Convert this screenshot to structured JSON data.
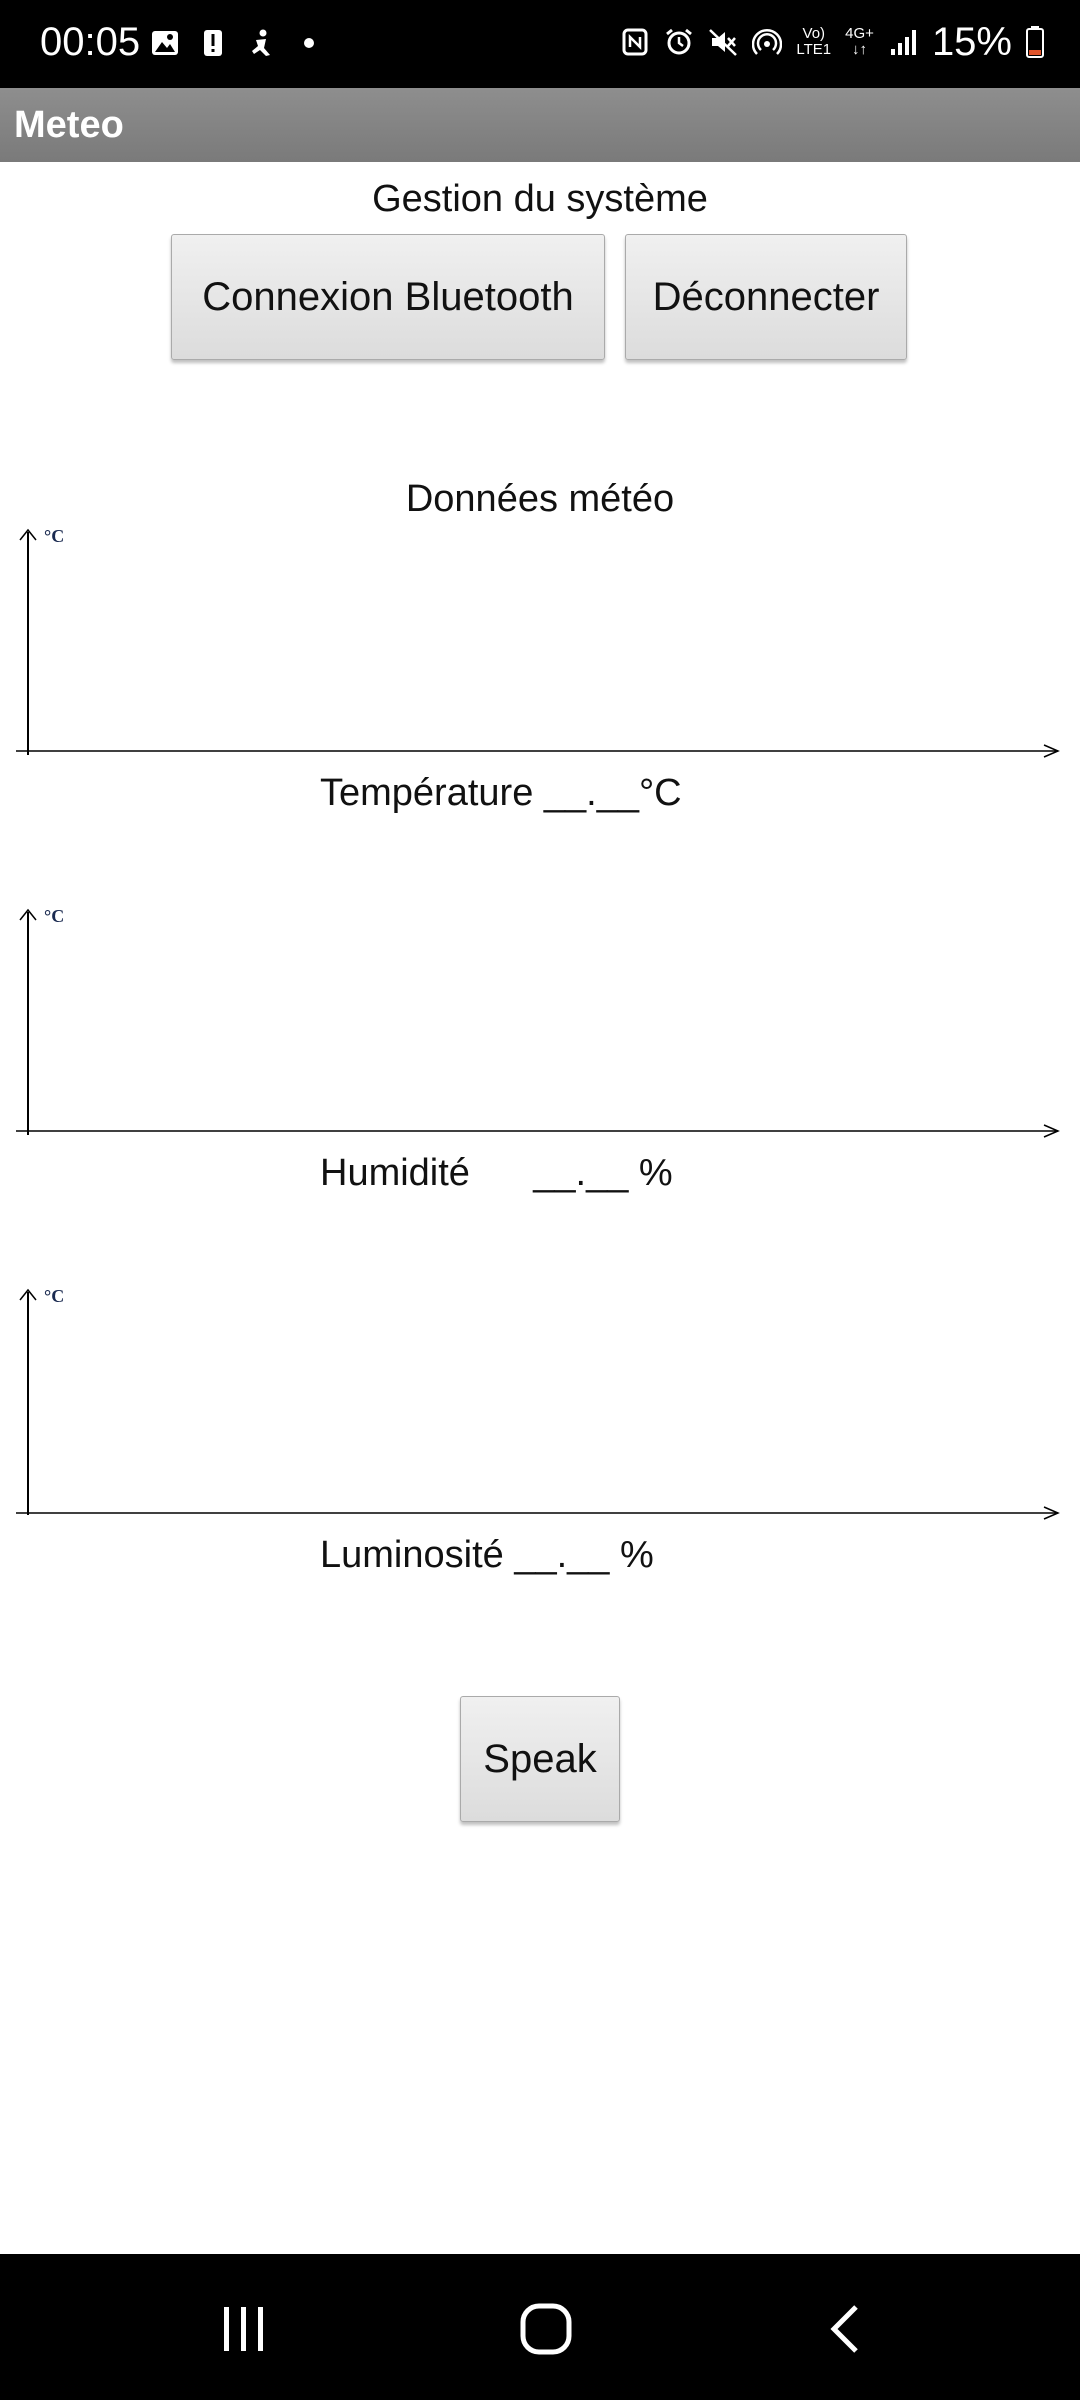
{
  "status_bar": {
    "time": "00:05",
    "battery_percent": "15%",
    "network_label_top": "Vo)",
    "network_label_bottom": "LTE1",
    "data_label": "4G+",
    "icons_left": [
      "image-icon",
      "alert-icon",
      "accessibility-icon",
      "dot-icon"
    ],
    "icons_right": [
      "nfc-icon",
      "alarm-icon",
      "mute-icon",
      "hotspot-icon",
      "signal-icon",
      "battery-icon"
    ]
  },
  "app": {
    "title": "Meteo"
  },
  "system": {
    "heading": "Gestion du système",
    "connect_label": "Connexion Bluetooth",
    "disconnect_label": "Déconnecter"
  },
  "weather": {
    "heading": "Données météo",
    "charts": [
      {
        "unit_marker": "°C",
        "caption": "Température __.__°C"
      },
      {
        "unit_marker": "°C",
        "caption": "Humidité      __.__ %"
      },
      {
        "unit_marker": "°C",
        "caption": "Luminosité __.__ %"
      }
    ]
  },
  "speak_label": "Speak",
  "nav": {
    "icons": [
      "recent-apps-icon",
      "home-icon",
      "back-icon"
    ]
  }
}
